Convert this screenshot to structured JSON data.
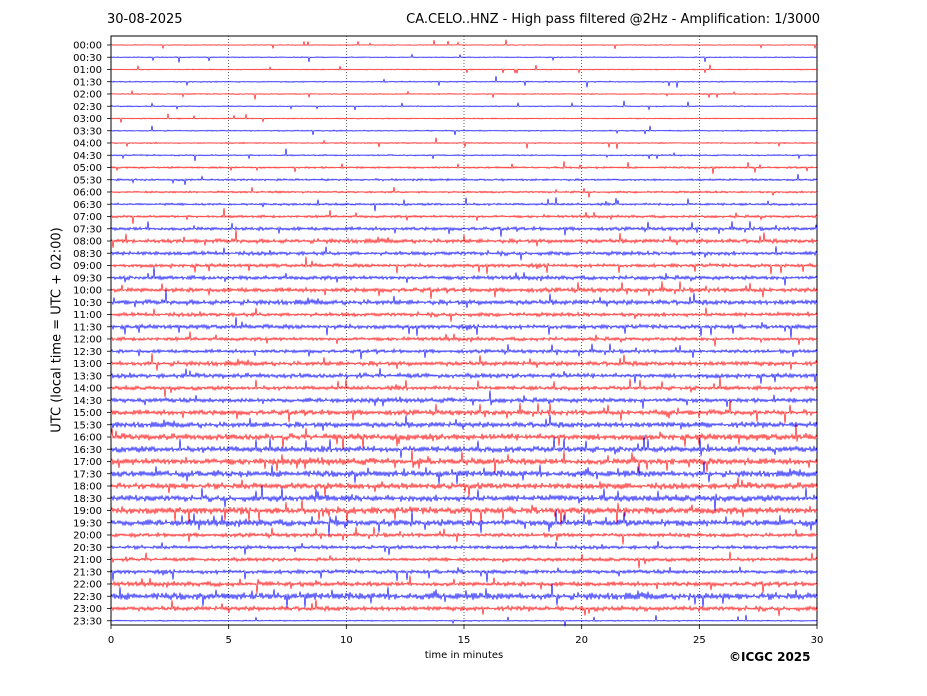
{
  "header": {
    "date": "30-08-2025",
    "station_title": "CA.CELO..HNZ - High pass filtered @2Hz - Amplification: 1/3000"
  },
  "footer": {
    "credit": "©ICGC 2025"
  },
  "chart_data": {
    "type": "line",
    "title": "CA.CELO..HNZ - High pass filtered @2Hz - Amplification: 1/3000",
    "xlabel": "time in minutes",
    "ylabel": "UTC (local time = UTC + 02:00)",
    "xlim": [
      0,
      30
    ],
    "xticks": [
      0,
      5,
      10,
      15,
      20,
      25,
      30
    ],
    "grid": "vertical dotted lines at 5, 10, 15, 20, 25",
    "series_colors": [
      "#ff0000",
      "#0000ff"
    ],
    "rows": [
      {
        "label": "00:00",
        "color": "#ff0000",
        "activity": 0.05
      },
      {
        "label": "00:30",
        "color": "#0000ff",
        "activity": 0.06
      },
      {
        "label": "01:00",
        "color": "#ff0000",
        "activity": 0.08
      },
      {
        "label": "01:30",
        "color": "#0000ff",
        "activity": 0.1
      },
      {
        "label": "02:00",
        "color": "#ff0000",
        "activity": 0.08
      },
      {
        "label": "02:30",
        "color": "#0000ff",
        "activity": 0.08
      },
      {
        "label": "03:00",
        "color": "#ff0000",
        "activity": 0.08
      },
      {
        "label": "03:30",
        "color": "#0000ff",
        "activity": 0.1
      },
      {
        "label": "04:00",
        "color": "#ff0000",
        "activity": 0.1
      },
      {
        "label": "04:30",
        "color": "#0000ff",
        "activity": 0.12
      },
      {
        "label": "05:00",
        "color": "#ff0000",
        "activity": 0.2
      },
      {
        "label": "05:30",
        "color": "#0000ff",
        "activity": 0.22
      },
      {
        "label": "06:00",
        "color": "#ff0000",
        "activity": 0.22
      },
      {
        "label": "06:30",
        "color": "#0000ff",
        "activity": 0.25
      },
      {
        "label": "07:00",
        "color": "#ff0000",
        "activity": 0.3
      },
      {
        "label": "07:30",
        "color": "#0000ff",
        "activity": 0.45
      },
      {
        "label": "08:00",
        "color": "#ff0000",
        "activity": 0.55
      },
      {
        "label": "08:30",
        "color": "#0000ff",
        "activity": 0.5
      },
      {
        "label": "09:00",
        "color": "#ff0000",
        "activity": 0.45
      },
      {
        "label": "09:30",
        "color": "#0000ff",
        "activity": 0.5
      },
      {
        "label": "10:00",
        "color": "#ff0000",
        "activity": 0.6
      },
      {
        "label": "10:30",
        "color": "#0000ff",
        "activity": 0.65
      },
      {
        "label": "11:00",
        "color": "#ff0000",
        "activity": 0.5
      },
      {
        "label": "11:30",
        "color": "#0000ff",
        "activity": 0.55
      },
      {
        "label": "12:00",
        "color": "#ff0000",
        "activity": 0.45
      },
      {
        "label": "12:30",
        "color": "#0000ff",
        "activity": 0.45
      },
      {
        "label": "13:00",
        "color": "#ff0000",
        "activity": 0.6
      },
      {
        "label": "13:30",
        "color": "#0000ff",
        "activity": 0.6
      },
      {
        "label": "14:00",
        "color": "#ff0000",
        "activity": 0.5
      },
      {
        "label": "14:30",
        "color": "#0000ff",
        "activity": 0.6
      },
      {
        "label": "15:00",
        "color": "#ff0000",
        "activity": 0.7
      },
      {
        "label": "15:30",
        "color": "#0000ff",
        "activity": 0.75
      },
      {
        "label": "16:00",
        "color": "#ff0000",
        "activity": 0.85
      },
      {
        "label": "16:30",
        "color": "#0000ff",
        "activity": 0.8
      },
      {
        "label": "17:00",
        "color": "#ff0000",
        "activity": 0.9
      },
      {
        "label": "17:30",
        "color": "#0000ff",
        "activity": 0.85
      },
      {
        "label": "18:00",
        "color": "#ff0000",
        "activity": 0.85
      },
      {
        "label": "18:30",
        "color": "#0000ff",
        "activity": 0.85
      },
      {
        "label": "19:00",
        "color": "#ff0000",
        "activity": 0.95
      },
      {
        "label": "19:30",
        "color": "#0000ff",
        "activity": 0.9
      },
      {
        "label": "20:00",
        "color": "#ff0000",
        "activity": 0.5
      },
      {
        "label": "20:30",
        "color": "#0000ff",
        "activity": 0.45
      },
      {
        "label": "21:00",
        "color": "#ff0000",
        "activity": 0.45
      },
      {
        "label": "21:30",
        "color": "#0000ff",
        "activity": 0.5
      },
      {
        "label": "22:00",
        "color": "#ff0000",
        "activity": 0.6
      },
      {
        "label": "22:30",
        "color": "#0000ff",
        "activity": 0.95
      },
      {
        "label": "23:00",
        "color": "#ff0000",
        "activity": 0.6
      },
      {
        "label": "23:30",
        "color": "#0000ff",
        "activity": 0.1
      }
    ]
  }
}
